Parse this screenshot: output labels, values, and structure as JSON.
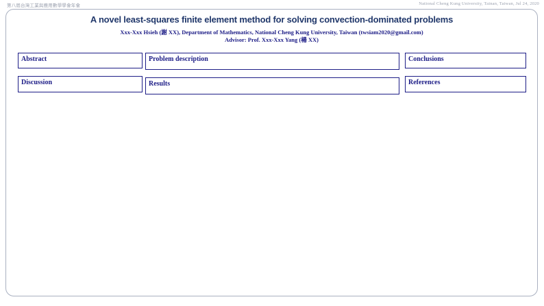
{
  "page_header": {
    "left": "第八屆台灣工業與應用數學學會年會",
    "right": "National Cheng Kung University, Tainan, Taiwan, Jul 24, 2020"
  },
  "poster": {
    "title": "A novel least-squares finite element method for solving convection-dominated problems",
    "authors": "Xxx-Xxx Hsieh (謝 XX), Department of Mathematics, National Cheng Kung University, Taiwan (twsiam2020@gmail.com)",
    "advisor": "Advisor: Prof. Xxx-Xxx Yang (楊 XX)",
    "sections": [
      {
        "id": "abstract",
        "label": "Abstract"
      },
      {
        "id": "problem-description",
        "label": "Problem description"
      },
      {
        "id": "conclusions",
        "label": "Conclusions"
      },
      {
        "id": "discussion",
        "label": "Discussion"
      },
      {
        "id": "results",
        "label": "Results"
      },
      {
        "id": "references",
        "label": "References"
      }
    ]
  },
  "colors": {
    "navy": "#1c1c86",
    "title_navy": "#21386b",
    "frame_gray": "#a9b0c0",
    "header_gray": "#9aa0ae"
  }
}
